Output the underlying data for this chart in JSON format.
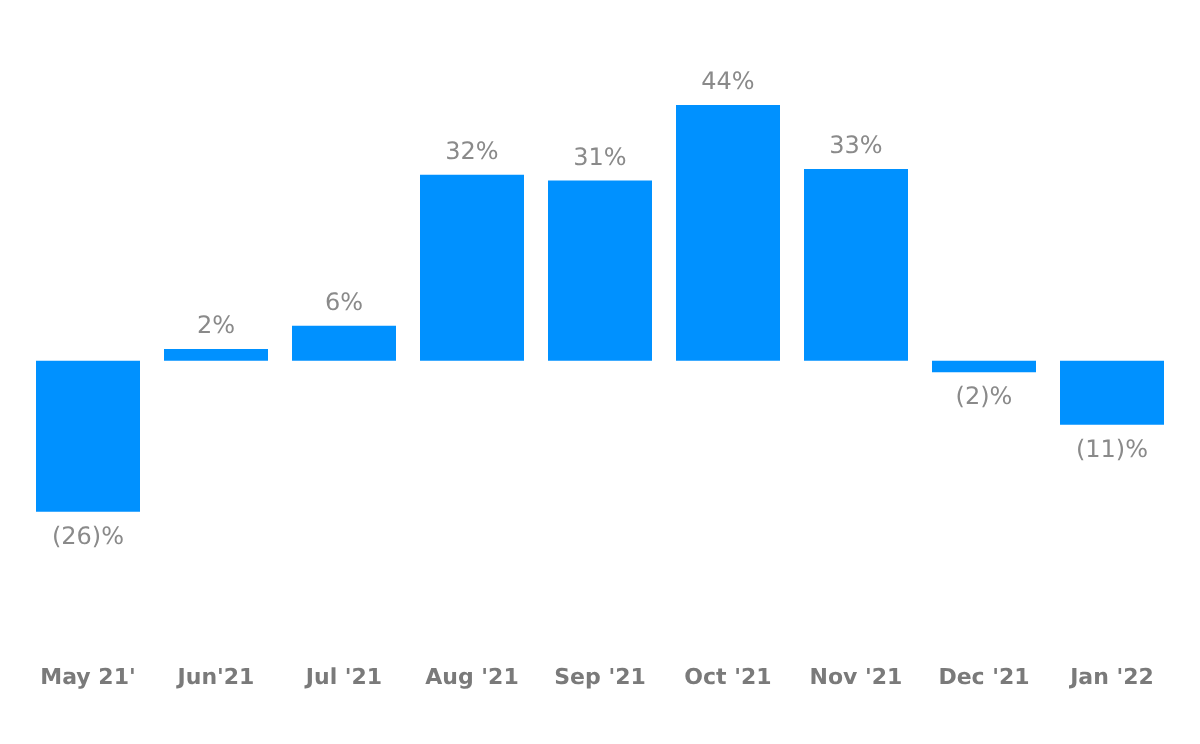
{
  "chart_data": {
    "type": "bar",
    "categories": [
      "May 21'",
      "Jun'21",
      "Jul '21",
      "Aug '21",
      "Sep '21",
      "Oct '21",
      "Nov '21",
      "Dec '21",
      "Jan '22"
    ],
    "values": [
      -26,
      2,
      6,
      32,
      31,
      44,
      33,
      -2,
      -11
    ],
    "value_labels": [
      "(26)%",
      "2%",
      "6%",
      "32%",
      "31%",
      "44%",
      "33%",
      "(2)%",
      "(11)%"
    ],
    "color": "#0091ff",
    "grid": false,
    "legend": false
  }
}
